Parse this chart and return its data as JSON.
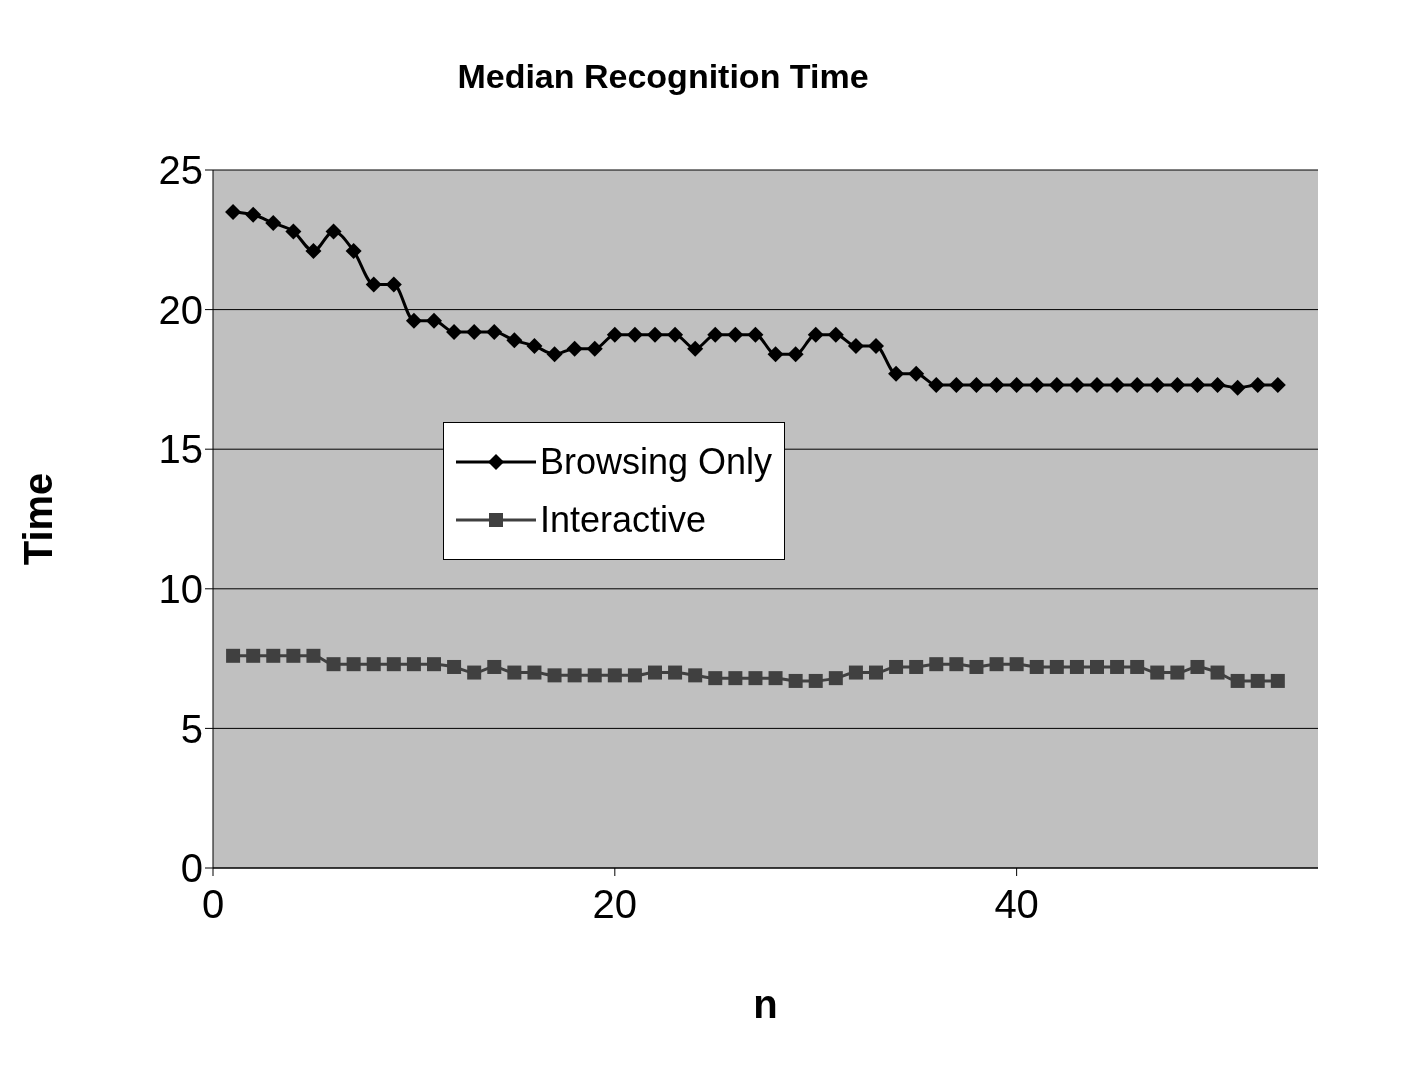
{
  "chart_data": {
    "type": "line",
    "title": "Median Recognition Time",
    "xlabel": "n",
    "ylabel": "Time",
    "x": [
      1,
      2,
      3,
      4,
      5,
      6,
      7,
      8,
      9,
      10,
      11,
      12,
      13,
      14,
      15,
      16,
      17,
      18,
      19,
      20,
      21,
      22,
      23,
      24,
      25,
      26,
      27,
      28,
      29,
      30,
      31,
      32,
      33,
      34,
      35,
      36,
      37,
      38,
      39,
      40,
      41,
      42,
      43,
      44,
      45,
      46,
      47,
      48,
      49,
      50,
      51,
      52,
      53
    ],
    "series": [
      {
        "name": "Browsing Only",
        "color": "#000000",
        "marker": "diamond",
        "values": [
          23.5,
          23.4,
          23.1,
          22.8,
          22.1,
          22.8,
          22.1,
          20.9,
          20.9,
          19.6,
          19.6,
          19.2,
          19.2,
          19.2,
          18.9,
          18.7,
          18.4,
          18.6,
          18.6,
          19.1,
          19.1,
          19.1,
          19.1,
          18.6,
          19.1,
          19.1,
          19.1,
          18.4,
          18.4,
          19.1,
          19.1,
          18.7,
          18.7,
          17.7,
          17.7,
          17.3,
          17.3,
          17.3,
          17.3,
          17.3,
          17.3,
          17.3,
          17.3,
          17.3,
          17.3,
          17.3,
          17.3,
          17.3,
          17.3,
          17.3,
          17.2,
          17.3,
          17.3
        ]
      },
      {
        "name": "Interactive",
        "color": "#404040",
        "marker": "square",
        "values": [
          7.6,
          7.6,
          7.6,
          7.6,
          7.6,
          7.3,
          7.3,
          7.3,
          7.3,
          7.3,
          7.3,
          7.2,
          7.0,
          7.2,
          7.0,
          7.0,
          6.9,
          6.9,
          6.9,
          6.9,
          6.9,
          7.0,
          7.0,
          6.9,
          6.8,
          6.8,
          6.8,
          6.8,
          6.7,
          6.7,
          6.8,
          7.0,
          7.0,
          7.2,
          7.2,
          7.3,
          7.3,
          7.2,
          7.3,
          7.3,
          7.2,
          7.2,
          7.2,
          7.2,
          7.2,
          7.2,
          7.0,
          7.0,
          7.2,
          7.0,
          6.7,
          6.7,
          6.7
        ]
      }
    ],
    "xlim": [
      0,
      55
    ],
    "xticks": [
      0,
      20,
      40
    ],
    "ylim": [
      0,
      25
    ],
    "yticks": [
      0,
      5,
      10,
      15,
      20,
      25
    ],
    "grid": "y",
    "legend": "left"
  }
}
